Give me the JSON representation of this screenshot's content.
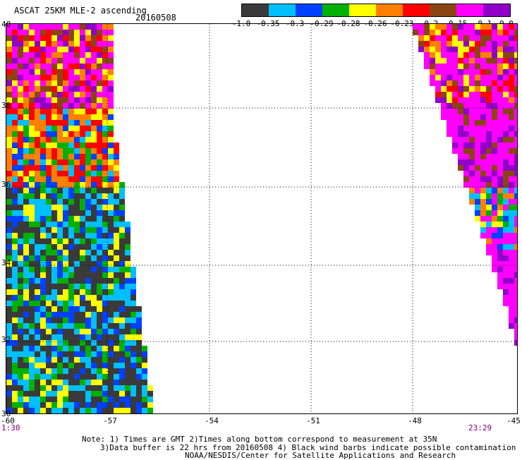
{
  "header": {
    "title": "ASCAT 25KM MLE-2 ascending",
    "date": "20160508"
  },
  "colorbar": {
    "colors": [
      "#3a3a3a",
      "#00bfff",
      "#0040ff",
      "#00b000",
      "#ffff00",
      "#ff8000",
      "#ff0000",
      "#8b4513",
      "#ff00ff",
      "#9000c8"
    ],
    "labels": [
      "-1.0",
      "-0.35",
      "-0.3",
      "-0.29",
      "-0.28",
      "-0.26",
      "-0.23",
      "-0.2",
      "-0.15",
      "-0.1",
      "0.0"
    ]
  },
  "map": {
    "lon_min": -60,
    "lon_max": -45,
    "lat_min": 30,
    "lat_max": 40,
    "x_ticks": [
      "-60",
      "-57",
      "-54",
      "-51",
      "-48",
      "-45"
    ],
    "y_ticks": [
      "40",
      "38",
      "36",
      "34",
      "32",
      "30"
    ],
    "time_left": "1:30",
    "time_right": "23:29"
  },
  "footer": {
    "line1": "Note: 1) Times are GMT 2)Times along bottom correspond to measurement at 35N",
    "line2": "3)Data buffer is 22 hrs from 20160508 4) Black wind barbs indicate possible contamination",
    "line3": "NOAA/NESDIS/Center for Satellite Applications and Research"
  }
}
